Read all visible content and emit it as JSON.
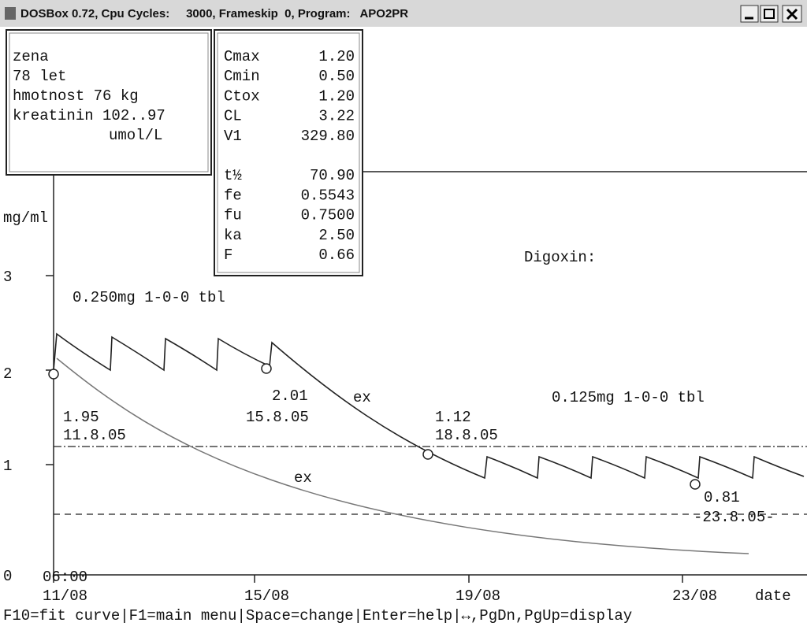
{
  "window": {
    "title": "DOSBox 0.72, Cpu Cycles:     3000, Frameskip  0, Program:   APO2PR"
  },
  "patient": {
    "lines": [
      "zena",
      "78 let",
      "hmotnost 76 kg",
      "kreatinin 102..97",
      "umol/L"
    ]
  },
  "parameters": {
    "rows": [
      [
        "Cmax",
        "1.20"
      ],
      [
        "Cmin",
        "0.50"
      ],
      [
        "Ctox",
        "1.20"
      ],
      [
        "CL",
        "3.22"
      ],
      [
        "V1",
        "329.80"
      ],
      [
        "t½",
        "70.90"
      ],
      [
        "fe",
        "0.5543"
      ],
      [
        "fu",
        "0.7500"
      ],
      [
        "ka",
        "2.50"
      ],
      [
        "F",
        "0.66"
      ]
    ]
  },
  "chart": {
    "drug": "Digoxin:",
    "y_unit": "mg/ml",
    "x_unit": "date",
    "y_labels": [
      "0",
      "1",
      "2",
      "3"
    ],
    "x_time": "06:00",
    "x_labels": [
      "11/08",
      "15/08",
      "19/08",
      "23/08"
    ],
    "dose_1": "0.250mg 1-0-0 tbl",
    "dose_2": "0.125mg 1-0-0 tbl",
    "measurements": [
      [
        "1.95",
        "11.8.05"
      ],
      [
        "2.01",
        "15.8.05"
      ],
      [
        "1.12",
        "18.8.05"
      ],
      [
        "0.81",
        "-23.8.05-"
      ]
    ],
    "ex_labels": [
      "ex",
      "ex"
    ]
  },
  "menu_bar": "F10=fit curve|F1=main menu|Space=change|Enter=help|↔,PgDn,PgUp=display"
}
